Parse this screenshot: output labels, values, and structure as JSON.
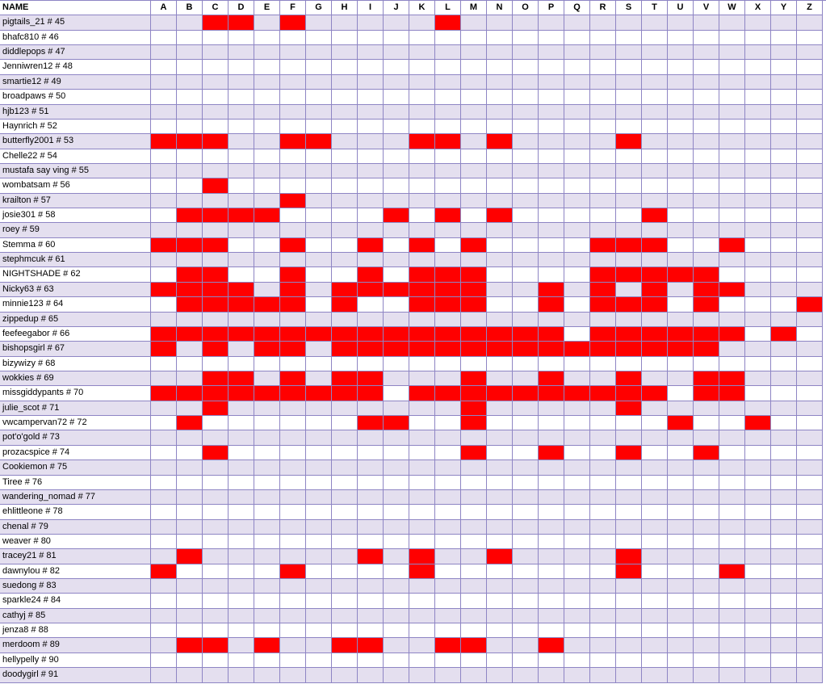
{
  "header": {
    "name_label": "NAME",
    "letters": [
      "A",
      "B",
      "C",
      "D",
      "E",
      "F",
      "G",
      "H",
      "I",
      "J",
      "K",
      "L",
      "M",
      "N",
      "O",
      "P",
      "Q",
      "R",
      "S",
      "T",
      "U",
      "V",
      "W",
      "X",
      "Y",
      "Z"
    ]
  },
  "colors": {
    "mark": "#ff0000",
    "row_shade": "#e4dfef",
    "grid_line": "#8e85c4"
  },
  "rows": [
    {
      "name": "pigtails_21 # 45",
      "marked": [
        "C",
        "D",
        "F",
        "L"
      ]
    },
    {
      "name": "bhafc810 # 46",
      "marked": []
    },
    {
      "name": "diddlepops # 47",
      "marked": []
    },
    {
      "name": "Jenniwren12 # 48",
      "marked": []
    },
    {
      "name": "smartie12 # 49",
      "marked": []
    },
    {
      "name": "broadpaws # 50",
      "marked": []
    },
    {
      "name": "hjb123 # 51",
      "marked": []
    },
    {
      "name": "Haynrich # 52",
      "marked": []
    },
    {
      "name": "butterfly2001 # 53",
      "marked": [
        "A",
        "B",
        "C",
        "F",
        "G",
        "K",
        "L",
        "N",
        "S"
      ]
    },
    {
      "name": "Chelle22 # 54",
      "marked": []
    },
    {
      "name": "mustafa say ving # 55",
      "marked": []
    },
    {
      "name": "wombatsam # 56",
      "marked": [
        "C"
      ]
    },
    {
      "name": "krailton # 57",
      "marked": [
        "F"
      ]
    },
    {
      "name": "josie301 # 58",
      "marked": [
        "B",
        "C",
        "D",
        "E",
        "J",
        "L",
        "N",
        "T"
      ]
    },
    {
      "name": "roey # 59",
      "marked": []
    },
    {
      "name": "Stemma # 60",
      "marked": [
        "A",
        "B",
        "C",
        "F",
        "I",
        "K",
        "M",
        "R",
        "S",
        "T",
        "W"
      ]
    },
    {
      "name": "stephmcuk # 61",
      "marked": []
    },
    {
      "name": "NIGHTSHADE # 62",
      "marked": [
        "B",
        "C",
        "F",
        "I",
        "K",
        "L",
        "M",
        "R",
        "S",
        "T",
        "U",
        "V"
      ]
    },
    {
      "name": "Nicky63 # 63",
      "marked": [
        "A",
        "B",
        "C",
        "D",
        "F",
        "H",
        "I",
        "J",
        "K",
        "L",
        "M",
        "P",
        "R",
        "T",
        "V",
        "W"
      ]
    },
    {
      "name": "minnie123 # 64",
      "marked": [
        "B",
        "C",
        "D",
        "E",
        "F",
        "H",
        "K",
        "L",
        "M",
        "P",
        "R",
        "S",
        "T",
        "V",
        "Z"
      ]
    },
    {
      "name": "zippedup # 65",
      "marked": []
    },
    {
      "name": "feefeegabor # 66",
      "marked": [
        "A",
        "B",
        "C",
        "D",
        "E",
        "F",
        "G",
        "H",
        "I",
        "J",
        "K",
        "L",
        "M",
        "N",
        "O",
        "P",
        "R",
        "S",
        "T",
        "U",
        "V",
        "W",
        "Y"
      ]
    },
    {
      "name": "bishopsgirl # 67",
      "marked": [
        "A",
        "C",
        "E",
        "F",
        "H",
        "I",
        "J",
        "K",
        "L",
        "M",
        "N",
        "O",
        "P",
        "Q",
        "R",
        "S",
        "T",
        "U",
        "V"
      ]
    },
    {
      "name": "bizywizy # 68",
      "marked": []
    },
    {
      "name": "wokkies # 69",
      "marked": [
        "C",
        "D",
        "F",
        "H",
        "I",
        "M",
        "P",
        "S",
        "V",
        "W"
      ]
    },
    {
      "name": "missgiddypants # 70",
      "marked": [
        "A",
        "B",
        "C",
        "D",
        "E",
        "F",
        "G",
        "H",
        "I",
        "K",
        "L",
        "M",
        "N",
        "O",
        "P",
        "Q",
        "R",
        "S",
        "T",
        "V",
        "W"
      ]
    },
    {
      "name": "julie_scot # 71",
      "marked": [
        "C",
        "M",
        "S"
      ]
    },
    {
      "name": "vwcampervan72 # 72",
      "marked": [
        "B",
        "I",
        "J",
        "M",
        "U",
        "X"
      ]
    },
    {
      "name": "pot'o'gold # 73",
      "marked": []
    },
    {
      "name": "prozacspice # 74",
      "marked": [
        "C",
        "M",
        "P",
        "S",
        "V"
      ]
    },
    {
      "name": "Cookiemon # 75",
      "marked": []
    },
    {
      "name": "Tiree # 76",
      "marked": []
    },
    {
      "name": "wandering_nomad # 77",
      "marked": []
    },
    {
      "name": "ehlittleone # 78",
      "marked": []
    },
    {
      "name": "chenal # 79",
      "marked": []
    },
    {
      "name": "weaver # 80",
      "marked": []
    },
    {
      "name": "tracey21 # 81",
      "marked": [
        "B",
        "I",
        "K",
        "N",
        "S"
      ]
    },
    {
      "name": "dawnylou # 82",
      "marked": [
        "A",
        "F",
        "K",
        "S",
        "W"
      ]
    },
    {
      "name": "suedong # 83",
      "marked": []
    },
    {
      "name": "sparkle24 # 84",
      "marked": []
    },
    {
      "name": "cathyj # 85",
      "marked": []
    },
    {
      "name": "jenza8 # 88",
      "marked": []
    },
    {
      "name": "merdoom # 89",
      "marked": [
        "B",
        "C",
        "E",
        "H",
        "I",
        "L",
        "M",
        "P"
      ]
    },
    {
      "name": "hellypelly # 90",
      "marked": []
    },
    {
      "name": "doodygirl # 91",
      "marked": []
    }
  ]
}
